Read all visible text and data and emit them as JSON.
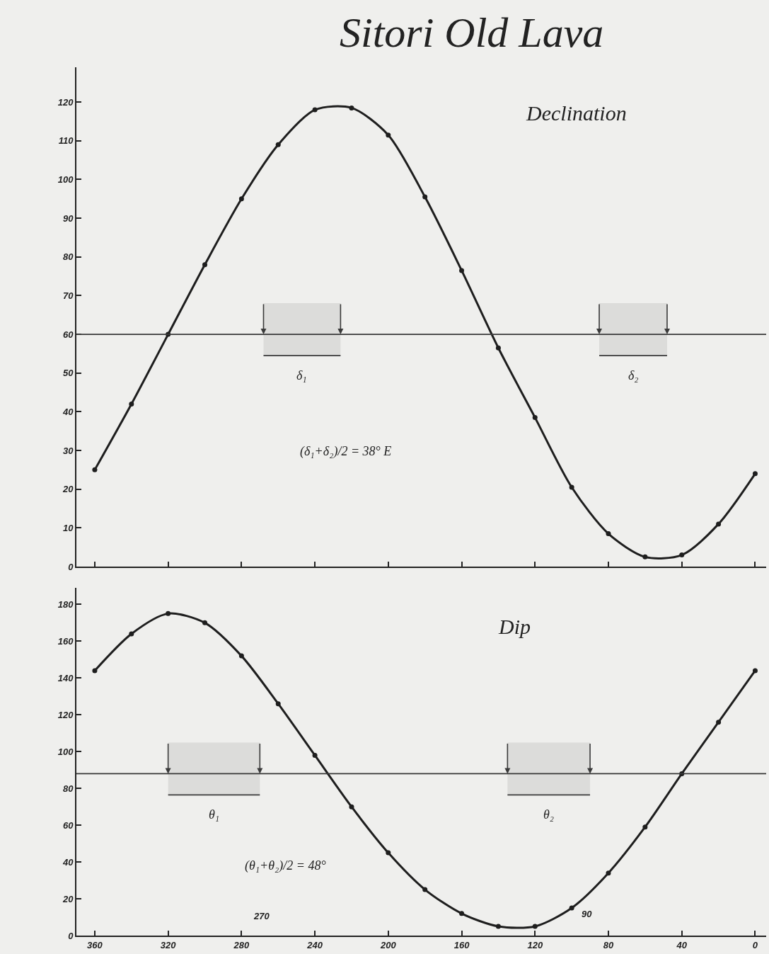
{
  "chart_data": [
    {
      "type": "line",
      "title": "Sitori Old Lava",
      "subtitle": "Declination",
      "x": [
        360,
        340,
        320,
        300,
        280,
        260,
        240,
        220,
        200,
        180,
        160,
        140,
        120,
        100,
        80,
        60,
        40,
        20,
        0
      ],
      "series": [
        {
          "color": "#1e1e1e",
          "values": [
            25,
            42,
            60,
            78,
            95,
            109,
            118,
            118.5,
            111.5,
            95.5,
            76.5,
            56.5,
            38.5,
            20.5,
            8.5,
            2.5,
            3,
            11,
            24
          ]
        }
      ],
      "xlim": [
        370,
        -6
      ],
      "xticks": [
        360,
        320,
        280,
        240,
        200,
        160,
        120,
        80,
        40,
        0
      ],
      "ylim": [
        0,
        129
      ],
      "yticks": [
        0,
        10,
        20,
        30,
        40,
        50,
        60,
        70,
        80,
        90,
        100,
        110,
        120
      ],
      "tick_labels": "y",
      "marker": "circle",
      "line_style": "solid",
      "ref_lines": [
        {
          "axis": "y",
          "value": 60,
          "color": "#3a3a3a"
        }
      ],
      "bands": [
        {
          "axis": "x",
          "from": 268,
          "to": 226,
          "label": "δ₁",
          "color": "#3a3a3a"
        },
        {
          "axis": "x",
          "from": 85,
          "to": 48,
          "label": "δ₂",
          "color": "#3a3a3a"
        }
      ],
      "annotations": [
        "(δ₁+δ₂)/2 = 38° E"
      ]
    },
    {
      "type": "line",
      "title": "Dip",
      "x": [
        360,
        340,
        320,
        300,
        280,
        260,
        240,
        220,
        200,
        180,
        160,
        140,
        120,
        100,
        80,
        60,
        40,
        20,
        0
      ],
      "series": [
        {
          "color": "#1e1e1e",
          "values": [
            144,
            164,
            175,
            170,
            152,
            126,
            98,
            70,
            45,
            25,
            12,
            5,
            5,
            15,
            34,
            59,
            88,
            116,
            144
          ]
        }
      ],
      "xlim": [
        370,
        -6
      ],
      "xticks": [
        360,
        320,
        280,
        240,
        200,
        160,
        120,
        80,
        40,
        0
      ],
      "ylim": [
        0,
        189
      ],
      "yticks": [
        0,
        20,
        40,
        60,
        80,
        100,
        120,
        140,
        160,
        180
      ],
      "marker": "circle",
      "line_style": "solid",
      "ref_lines": [
        {
          "axis": "y",
          "value": 88,
          "color": "#3a3a3a"
        }
      ],
      "bands": [
        {
          "axis": "x",
          "from": 320,
          "to": 270,
          "label": "θ₁",
          "color": "#3a3a3a"
        },
        {
          "axis": "x",
          "from": 135,
          "to": 90,
          "label": "θ₂",
          "color": "#3a3a3a"
        }
      ],
      "annotations": [
        "(θ₁+θ₂)/2 = 48°",
        "270",
        "90"
      ]
    }
  ]
}
